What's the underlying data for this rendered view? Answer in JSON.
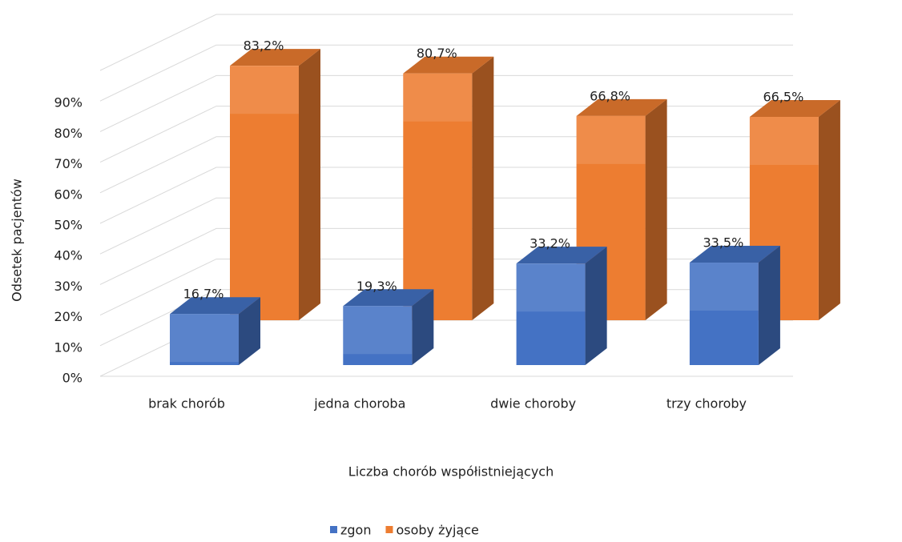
{
  "chart_data": {
    "type": "bar3d",
    "x_label": "Liczba chorób współistniejących",
    "y_label": "Odsetek pacjentów",
    "categories": [
      "brak chorób",
      "jedna choroba",
      "dwie choroby",
      "trzy choroby"
    ],
    "series": [
      {
        "name": "zgon",
        "color": "#4472c4",
        "values": [
          16.7,
          19.3,
          33.2,
          33.5
        ],
        "value_labels": [
          "16,7%",
          "19,3%",
          "33,2%",
          "33,5%"
        ]
      },
      {
        "name": "osoby żyjące",
        "color": "#ed7d31",
        "values": [
          83.2,
          80.7,
          66.8,
          66.5
        ],
        "value_labels": [
          "83,2%",
          "80,7%",
          "66,8%",
          "66,5%"
        ]
      }
    ],
    "ylim": [
      0,
      100
    ],
    "yticks": [
      {
        "value": 0,
        "label": "0%"
      },
      {
        "value": 10,
        "label": "10%"
      },
      {
        "value": 20,
        "label": "20%"
      },
      {
        "value": 30,
        "label": "30%"
      },
      {
        "value": 40,
        "label": "40%"
      },
      {
        "value": 50,
        "label": "50%"
      },
      {
        "value": 60,
        "label": "60%"
      },
      {
        "value": 70,
        "label": "70%"
      },
      {
        "value": 80,
        "label": "80%"
      },
      {
        "value": 90,
        "label": "90%"
      }
    ],
    "grid": true,
    "legend": "bottom"
  }
}
